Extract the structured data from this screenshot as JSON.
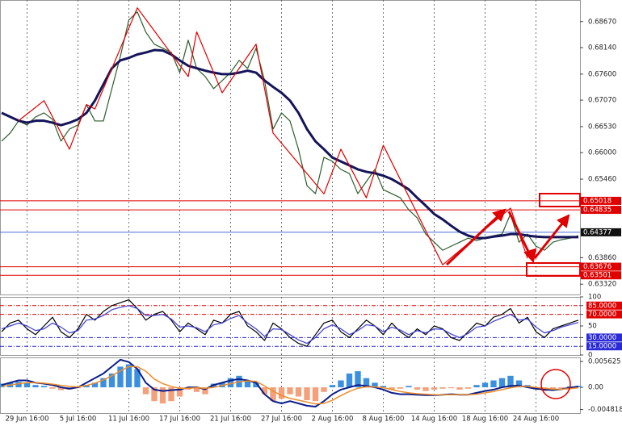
{
  "chart_data": [
    {
      "type": "line",
      "ylim": [
        0.6311,
        0.6911
      ],
      "yticks": [
        {
          "value": 0.6867,
          "label": "0.68670"
        },
        {
          "value": 0.6814,
          "label": "0.68140"
        },
        {
          "value": 0.676,
          "label": "0.67600"
        },
        {
          "value": 0.6707,
          "label": "0.67070"
        },
        {
          "value": 0.6653,
          "label": "0.66530"
        },
        {
          "value": 0.66,
          "label": "0.66000"
        },
        {
          "value": 0.6546,
          "label": "0.65460"
        },
        {
          "value": 0.6386,
          "label": "0.63860"
        },
        {
          "value": 0.6332,
          "label": "0.63320"
        }
      ],
      "grid": true,
      "hlines": [
        0.65018,
        0.64835,
        0.64377,
        0.63676,
        0.63501
      ],
      "hline_colors": [
        "#e00000",
        "#e00000",
        "#4a6fd8",
        "#e00000",
        "#e00000"
      ],
      "hline_label_colors": [
        "#e00000",
        "#e00000",
        "#111111",
        "#e00000",
        "#e00000"
      ],
      "series": [
        {
          "color": "#2b5d2b",
          "values": [
            0.66234,
            0.66398,
            0.66645,
            0.66563,
            0.66728,
            0.6681,
            0.66678,
            0.66234,
            0.66481,
            0.66563,
            0.66975,
            0.66645,
            0.66645,
            0.67304,
            0.67962,
            0.68703,
            0.68868,
            0.68456,
            0.68209,
            0.68127,
            0.68044,
            0.67633,
            0.68291,
            0.67715,
            0.67551,
            0.67304,
            0.67468,
            0.67633,
            0.6788,
            0.67715,
            0.68127,
            0.67468,
            0.66481,
            0.6681,
            0.66645,
            0.66069,
            0.65328,
            0.65164,
            0.65905,
            0.65822,
            0.65658,
            0.65575,
            0.65164,
            0.65411,
            0.65658,
            0.65246,
            0.65164,
            0.65082,
            0.64835,
            0.6467,
            0.64341,
            0.64176,
            0.64012,
            0.64094,
            0.64176,
            0.64258,
            0.64209,
            0.64258,
            0.64308,
            0.64341,
            0.64752,
            0.64176,
            0.64341,
            0.64094,
            0.64012,
            0.64176,
            0.64226,
            0.64258,
            0.64308
          ]
        },
        {
          "color": "#14145a",
          "width": 3,
          "values": [
            0.6681,
            0.6673,
            0.6665,
            0.6661,
            0.6665,
            0.6665,
            0.6661,
            0.6656,
            0.6661,
            0.6668,
            0.6681,
            0.6706,
            0.6739,
            0.6772,
            0.6788,
            0.6793,
            0.68,
            0.6804,
            0.6809,
            0.6808,
            0.68,
            0.6788,
            0.6777,
            0.6772,
            0.6767,
            0.6763,
            0.676,
            0.676,
            0.6763,
            0.6767,
            0.6763,
            0.6747,
            0.6734,
            0.6722,
            0.6706,
            0.6681,
            0.6648,
            0.6623,
            0.6607,
            0.659,
            0.6582,
            0.6574,
            0.6566,
            0.6561,
            0.6558,
            0.6553,
            0.6546,
            0.6536,
            0.6525,
            0.6508,
            0.6492,
            0.6475,
            0.6464,
            0.6451,
            0.6439,
            0.6431,
            0.6426,
            0.6426,
            0.6429,
            0.6431,
            0.6434,
            0.6434,
            0.6431,
            0.6429,
            0.6428,
            0.6428,
            0.6428,
            0.6428,
            0.6428
          ]
        },
        {
          "color": "#e00000",
          "x": [
            2,
            5,
            8,
            10,
            11,
            16,
            22,
            23,
            26,
            30,
            32,
            38,
            40,
            43,
            45,
            52,
            60,
            62
          ],
          "values": [
            0.6665,
            0.6706,
            0.6607,
            0.6698,
            0.6689,
            0.6895,
            0.6755,
            0.6846,
            0.6722,
            0.6821,
            0.664,
            0.6516,
            0.6607,
            0.6508,
            0.6615,
            0.63715,
            0.6487,
            0.63847
          ]
        }
      ]
    },
    {
      "type": "line",
      "ylim": [
        0,
        100
      ],
      "yticks": [
        100,
        {
          "value": 85,
          "label": "85.0000"
        },
        {
          "value": 70,
          "label": "70.0000"
        },
        50,
        {
          "value": 30,
          "label": "30.0000"
        },
        {
          "value": 15,
          "label": "15.0000"
        },
        0
      ],
      "grid": true,
      "hlines": [
        85,
        70,
        30,
        15
      ],
      "hline_colors": [
        "#e00000",
        "#e00000",
        "#2a2ad8",
        "#2a2ad8"
      ],
      "series": [
        {
          "color": "#000000",
          "values": [
            40,
            55,
            60,
            45,
            35,
            50,
            65,
            40,
            30,
            45,
            70,
            60,
            75,
            85,
            90,
            95,
            80,
            60,
            70,
            75,
            60,
            40,
            55,
            45,
            35,
            60,
            55,
            70,
            75,
            50,
            40,
            25,
            55,
            45,
            30,
            20,
            15,
            35,
            55,
            60,
            40,
            30,
            45,
            60,
            50,
            35,
            55,
            40,
            30,
            45,
            35,
            50,
            45,
            30,
            25,
            40,
            55,
            50,
            65,
            70,
            80,
            55,
            65,
            40,
            30,
            45,
            50,
            55,
            60
          ]
        },
        {
          "color": "#3b3bd8",
          "values": [
            45,
            50,
            55,
            50,
            42,
            45,
            55,
            48,
            38,
            42,
            60,
            62,
            68,
            78,
            82,
            85,
            80,
            68,
            68,
            70,
            62,
            48,
            50,
            47,
            40,
            52,
            55,
            63,
            68,
            55,
            45,
            32,
            45,
            44,
            35,
            26,
            20,
            30,
            45,
            52,
            45,
            35,
            42,
            52,
            50,
            40,
            48,
            43,
            35,
            42,
            38,
            45,
            44,
            36,
            30,
            37,
            48,
            50,
            58,
            64,
            70,
            60,
            62,
            48,
            38,
            42,
            48,
            52,
            56
          ]
        }
      ]
    },
    {
      "type": "bar",
      "ylim": [
        -0.0056,
        0.0065
      ],
      "yticks": [
        {
          "value": 0.005625,
          "label": "0.005625"
        },
        {
          "value": 0,
          "label": "0.00"
        },
        {
          "value": -0.004818,
          "label": "-0.004818"
        }
      ],
      "grid": true,
      "categories": [
        null,
        null,
        null,
        "29 Jun 16:00",
        null,
        null,
        null,
        null,
        null,
        "5 Jul 16:00",
        null,
        null,
        null,
        null,
        null,
        "11 Jul 16:00",
        null,
        null,
        null,
        null,
        null,
        "17 Jul 16:00",
        null,
        null,
        null,
        null,
        null,
        "21 Jul 16:00",
        null,
        null,
        null,
        null,
        null,
        "27 Jul 16:00",
        null,
        null,
        null,
        null,
        null,
        "2 Aug 16:00",
        null,
        null,
        null,
        null,
        null,
        "8 Aug 16:00",
        null,
        null,
        null,
        null,
        null,
        "14 Aug 16:00",
        null,
        null,
        null,
        null,
        null,
        "18 Aug 16:00",
        null,
        null,
        null,
        null,
        null,
        "24 Aug 16:00",
        null,
        null,
        null,
        null,
        null
      ],
      "pos_color": "#3a8fe0",
      "neg_color": "#f4a07a",
      "values": [
        0.0008,
        0.001,
        0.0012,
        0.001,
        0.0005,
        0.0003,
        -0.0003,
        -0.0006,
        -0.0005,
        -0.0002,
        0.0005,
        0.001,
        0.002,
        0.003,
        0.0045,
        0.005,
        0.004,
        -0.0015,
        -0.003,
        -0.0035,
        -0.003,
        -0.002,
        -0.0005,
        -0.001,
        -0.0015,
        0.0008,
        0.001,
        0.002,
        0.0025,
        0.0015,
        0.001,
        -0.0015,
        -0.003,
        -0.0025,
        -0.0015,
        -0.002,
        -0.0028,
        -0.003,
        -0.001,
        0.0005,
        0.0015,
        0.003,
        0.0035,
        0.002,
        0.001,
        0.0003,
        -0.0005,
        -0.0003,
        0.0003,
        -0.0005,
        -0.0008,
        -0.0005,
        -0.0003,
        -0.0002,
        -0.0005,
        -0.0003,
        0.0005,
        0.001,
        0.0015,
        0.002,
        0.0025,
        0.0015,
        0.0005,
        -0.0005,
        -0.0008,
        -0.0005,
        -0.0002,
        0.0002,
        0.0003
      ],
      "series": [
        {
          "color": "#0b1e8c",
          "width": 2,
          "values": [
            0.0005,
            0.001,
            0.0015,
            0.0015,
            0.001,
            0.0008,
            0.0005,
            0,
            -0.0003,
            0,
            0.001,
            0.002,
            0.003,
            0.0045,
            0.006,
            0.0055,
            0.004,
            0.001,
            -0.0005,
            -0.0008,
            -0.0006,
            -0.0005,
            0,
            0,
            -0.0004,
            0.0005,
            0.001,
            0.0015,
            0.0018,
            0.0015,
            0.001,
            -0.0015,
            -0.003,
            -0.0035,
            -0.003,
            -0.0035,
            -0.004,
            -0.0042,
            -0.003,
            -0.0015,
            -0.0005,
            0,
            0.0005,
            0.0003,
            0,
            -0.0005,
            -0.0012,
            -0.0015,
            -0.0015,
            -0.0016,
            -0.0017,
            -0.0017,
            -0.0016,
            -0.0015,
            -0.0016,
            -0.0016,
            -0.0012,
            -0.0008,
            -0.0005,
            0,
            0.0003,
            0.0004,
            0,
            -0.0003,
            -0.0005,
            -0.0006,
            -0.0004,
            -0.0001,
            0.0002
          ]
        },
        {
          "color": "#f08c28",
          "width": 1.5,
          "values": [
            0.0002,
            0.0005,
            0.0008,
            0.001,
            0.001,
            0.0009,
            0.0007,
            0.0004,
            0.0002,
            0.0001,
            0.0004,
            0.0009,
            0.0016,
            0.0025,
            0.0036,
            0.0045,
            0.0045,
            0.0035,
            0.0018,
            0.0008,
            0.0002,
            -0.0002,
            -0.0002,
            -0.0001,
            -0.0002,
            0,
            0.0004,
            0.0008,
            0.0012,
            0.0014,
            0.0013,
            0.0003,
            -0.0008,
            -0.0018,
            -0.0024,
            -0.0028,
            -0.0032,
            -0.0036,
            -0.0035,
            -0.0028,
            -0.0018,
            -0.0009,
            -0.0002,
            0.0001,
            0.0001,
            -0.0001,
            -0.0005,
            -0.0009,
            -0.0012,
            -0.0014,
            -0.0015,
            -0.0016,
            -0.0016,
            -0.0016,
            -0.0016,
            -0.0016,
            -0.0015,
            -0.0012,
            -0.0009,
            -0.0005,
            -0.0001,
            0.0002,
            0.0002,
            0,
            -0.0002,
            -0.0004,
            -0.0004,
            -0.0003,
            -0.0001
          ]
        }
      ]
    }
  ]
}
